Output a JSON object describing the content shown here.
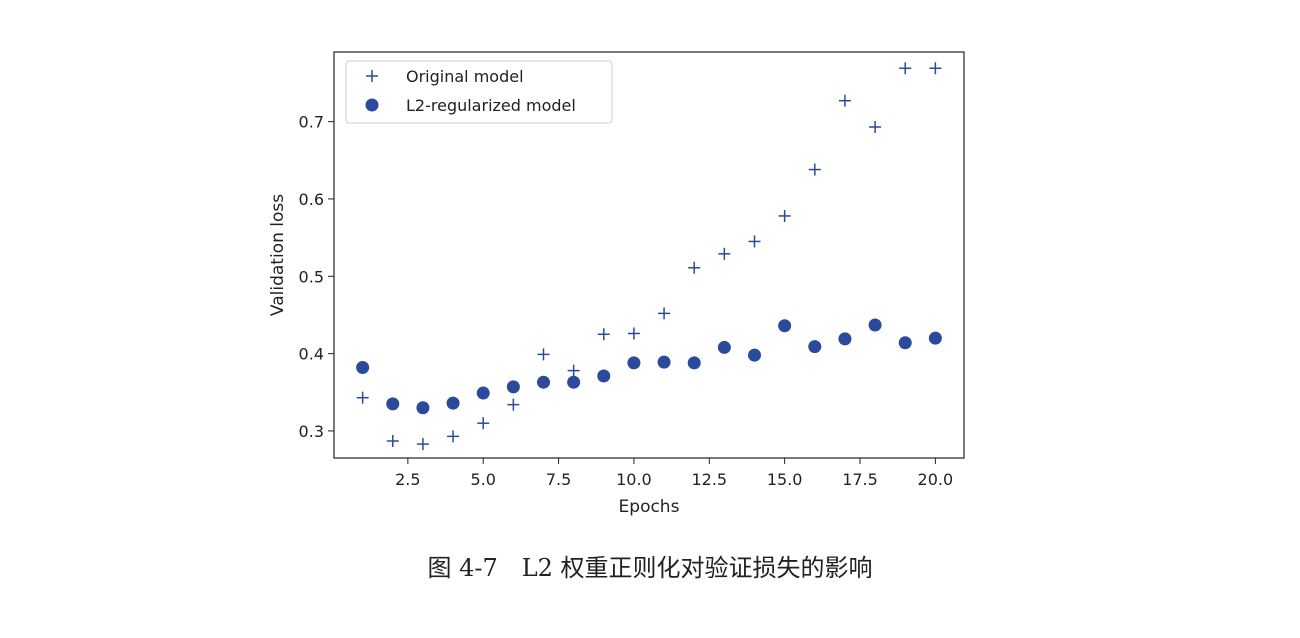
{
  "caption": "图 4-7　L2 权重正则化对验证损失的影响",
  "colors": {
    "series": "#2b4a9b",
    "axis": "#222222"
  },
  "chart_data": {
    "type": "scatter",
    "xlabel": "Epochs",
    "ylabel": "Validation loss",
    "xlim": [
      0.05,
      20.95
    ],
    "ylim": [
      0.265,
      0.79
    ],
    "xticks": [
      2.5,
      5.0,
      7.5,
      10.0,
      12.5,
      15.0,
      17.5,
      20.0
    ],
    "xtick_labels": [
      "2.5",
      "5.0",
      "7.5",
      "10.0",
      "12.5",
      "15.0",
      "17.5",
      "20.0"
    ],
    "yticks": [
      0.3,
      0.4,
      0.5,
      0.6,
      0.7
    ],
    "ytick_labels": [
      "0.3",
      "0.4",
      "0.5",
      "0.6",
      "0.7"
    ],
    "grid": false,
    "legend_position": "top-left",
    "x": [
      1,
      2,
      3,
      4,
      5,
      6,
      7,
      8,
      9,
      10,
      11,
      12,
      13,
      14,
      15,
      16,
      17,
      18,
      19,
      20
    ],
    "series": [
      {
        "name": "Original model",
        "marker": "plus",
        "values": [
          0.343,
          0.287,
          0.283,
          0.293,
          0.31,
          0.334,
          0.399,
          0.378,
          0.425,
          0.426,
          0.452,
          0.511,
          0.529,
          0.545,
          0.578,
          0.638,
          0.727,
          0.693,
          0.769,
          0.769
        ]
      },
      {
        "name": "L2-regularized model",
        "marker": "circle",
        "values": [
          0.382,
          0.335,
          0.33,
          0.336,
          0.349,
          0.357,
          0.363,
          0.363,
          0.371,
          0.388,
          0.389,
          0.388,
          0.408,
          0.398,
          0.436,
          0.409,
          0.419,
          0.437,
          0.414,
          0.42
        ]
      }
    ]
  }
}
